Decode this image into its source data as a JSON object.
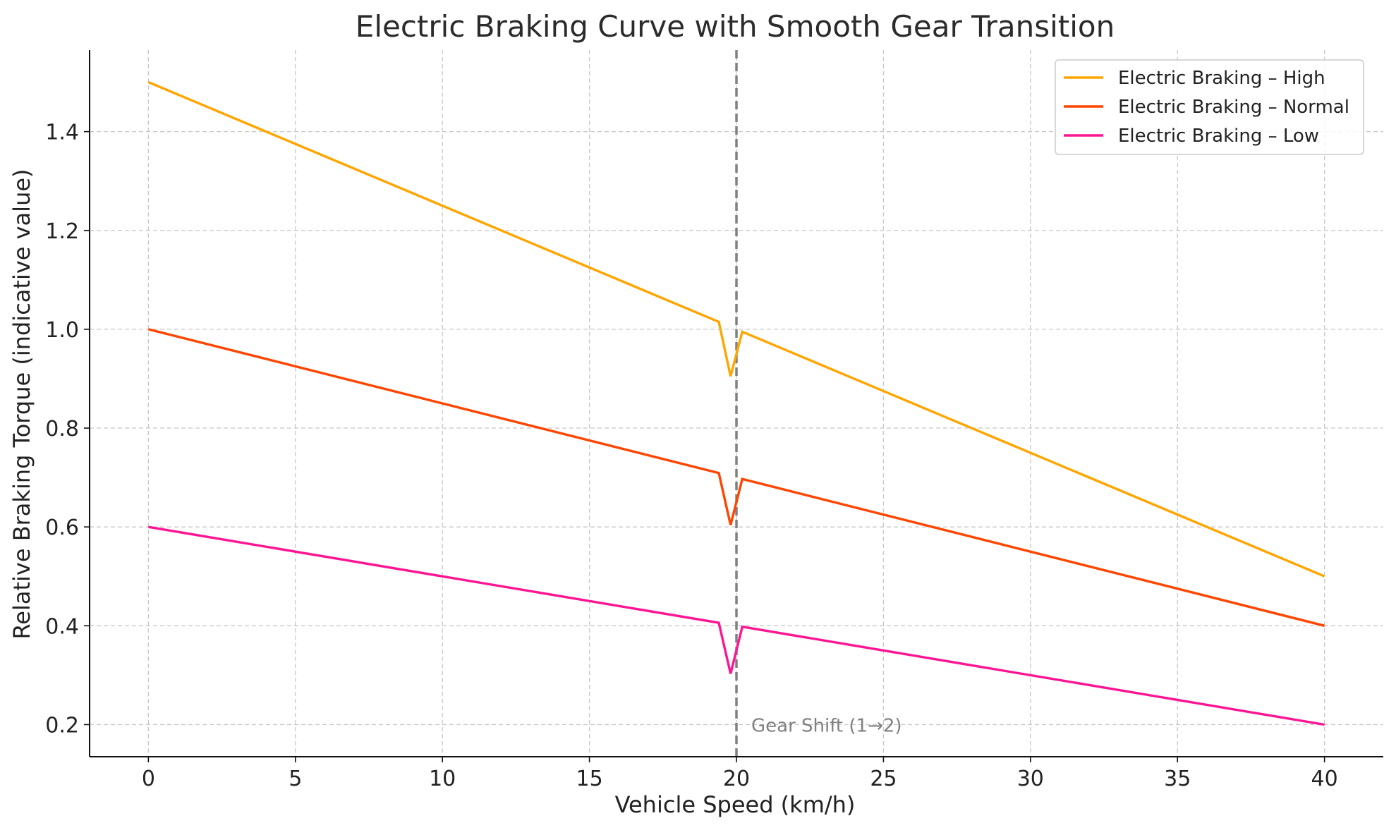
{
  "chart_data": {
    "type": "line",
    "title": "Electric Braking Curve with Smooth Gear Transition",
    "xlabel": "Vehicle Speed (km/h)",
    "ylabel": "Relative Braking Torque (indicative value)",
    "xlim": [
      -2,
      42
    ],
    "ylim": [
      0.135,
      1.565
    ],
    "xticks": [
      0,
      5,
      10,
      15,
      20,
      25,
      30,
      35,
      40
    ],
    "xtick_labels": [
      "0",
      "5",
      "10",
      "15",
      "20",
      "25",
      "30",
      "35",
      "40"
    ],
    "yticks": [
      0.2,
      0.4,
      0.6,
      0.8,
      1.0,
      1.2,
      1.4
    ],
    "ytick_labels": [
      "0.2",
      "0.4",
      "0.6",
      "0.8",
      "1.0",
      "1.2",
      "1.4"
    ],
    "grid": true,
    "legend_position": "top-right",
    "vline": {
      "x": 20,
      "color": "#808080",
      "style": "dashed",
      "label": "Gear Shift (1→2)",
      "label_y": 0.2
    },
    "series": [
      {
        "name": "Electric Braking – High",
        "color": "#FFA500",
        "x": [
          0,
          19.4,
          19.8,
          20.2,
          40
        ],
        "y": [
          1.5,
          1.015,
          0.905,
          0.995,
          0.5
        ]
      },
      {
        "name": "Electric Braking – Normal",
        "color": "#FF4500",
        "x": [
          0,
          19.4,
          19.8,
          20.2,
          40
        ],
        "y": [
          1.0,
          0.709,
          0.604,
          0.697,
          0.4
        ]
      },
      {
        "name": "Electric Braking – Low",
        "color": "#FF1493",
        "x": [
          0,
          19.4,
          19.8,
          20.2,
          40
        ],
        "y": [
          0.6,
          0.406,
          0.303,
          0.398,
          0.2
        ]
      }
    ]
  }
}
